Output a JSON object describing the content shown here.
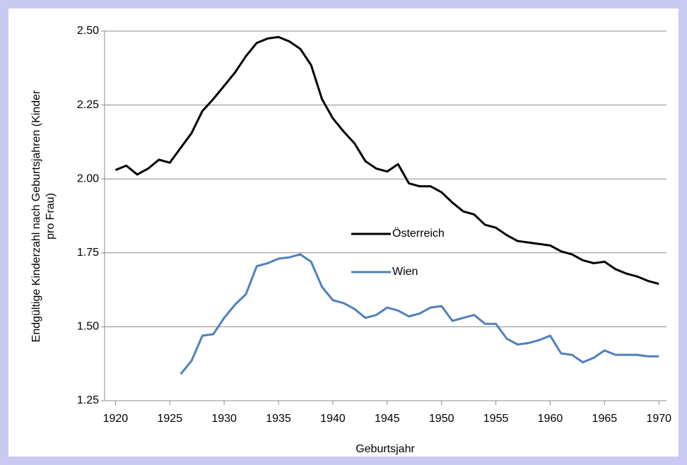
{
  "chart_data": {
    "type": "line",
    "xlabel": "Geburtsjahr",
    "ylabel": [
      "Endgültige Kinderzahl nach Geburtsjahren (Kinder",
      "pro Frau)"
    ],
    "x": [
      1920,
      1921,
      1922,
      1923,
      1924,
      1925,
      1926,
      1927,
      1928,
      1929,
      1930,
      1931,
      1932,
      1933,
      1934,
      1935,
      1936,
      1937,
      1938,
      1939,
      1940,
      1941,
      1942,
      1943,
      1944,
      1945,
      1946,
      1947,
      1948,
      1949,
      1950,
      1951,
      1952,
      1953,
      1954,
      1955,
      1956,
      1957,
      1958,
      1959,
      1960,
      1961,
      1962,
      1963,
      1964,
      1965,
      1966,
      1967,
      1968,
      1969,
      1970
    ],
    "series": [
      {
        "name": "Österreich",
        "color": "#000000",
        "values": [
          2.03,
          2.045,
          2.015,
          2.035,
          2.065,
          2.055,
          2.105,
          2.155,
          2.23,
          2.27,
          2.315,
          2.36,
          2.415,
          2.46,
          2.475,
          2.48,
          2.465,
          2.44,
          2.385,
          2.27,
          2.205,
          2.16,
          2.12,
          2.06,
          2.035,
          2.025,
          2.05,
          1.985,
          1.975,
          1.975,
          1.955,
          1.92,
          1.89,
          1.88,
          1.845,
          1.835,
          1.81,
          1.79,
          1.785,
          1.78,
          1.775,
          1.755,
          1.745,
          1.725,
          1.715,
          1.72,
          1.695,
          1.68,
          1.67,
          1.655,
          1.645
        ]
      },
      {
        "name": "Wien",
        "color": "#4f81bd",
        "values": [
          null,
          null,
          null,
          null,
          null,
          null,
          1.34,
          1.385,
          1.47,
          1.475,
          1.53,
          1.575,
          1.61,
          1.705,
          1.715,
          1.73,
          1.735,
          1.745,
          1.72,
          1.635,
          1.59,
          1.58,
          1.56,
          1.53,
          1.54,
          1.565,
          1.555,
          1.535,
          1.545,
          1.565,
          1.57,
          1.52,
          1.53,
          1.54,
          1.51,
          1.51,
          1.46,
          1.44,
          1.445,
          1.455,
          1.47,
          1.41,
          1.405,
          1.38,
          1.395,
          1.42,
          1.405,
          1.405,
          1.405,
          1.4,
          1.4
        ]
      }
    ],
    "xlim": [
      1919,
      1970.7
    ],
    "xticks": [
      1920,
      1925,
      1930,
      1935,
      1940,
      1945,
      1950,
      1955,
      1960,
      1965,
      1970
    ],
    "ylim": [
      1.25,
      2.5
    ],
    "yticks": [
      {
        "value": 1.25,
        "label": "1.25"
      },
      {
        "value": 1.5,
        "label": "1.50"
      },
      {
        "value": 1.75,
        "label": "1.75"
      },
      {
        "value": 2,
        "label": "2.00"
      },
      {
        "value": 2.25,
        "label": "2.25"
      },
      {
        "value": 2.5,
        "label": "2.50"
      }
    ],
    "grid": true
  }
}
